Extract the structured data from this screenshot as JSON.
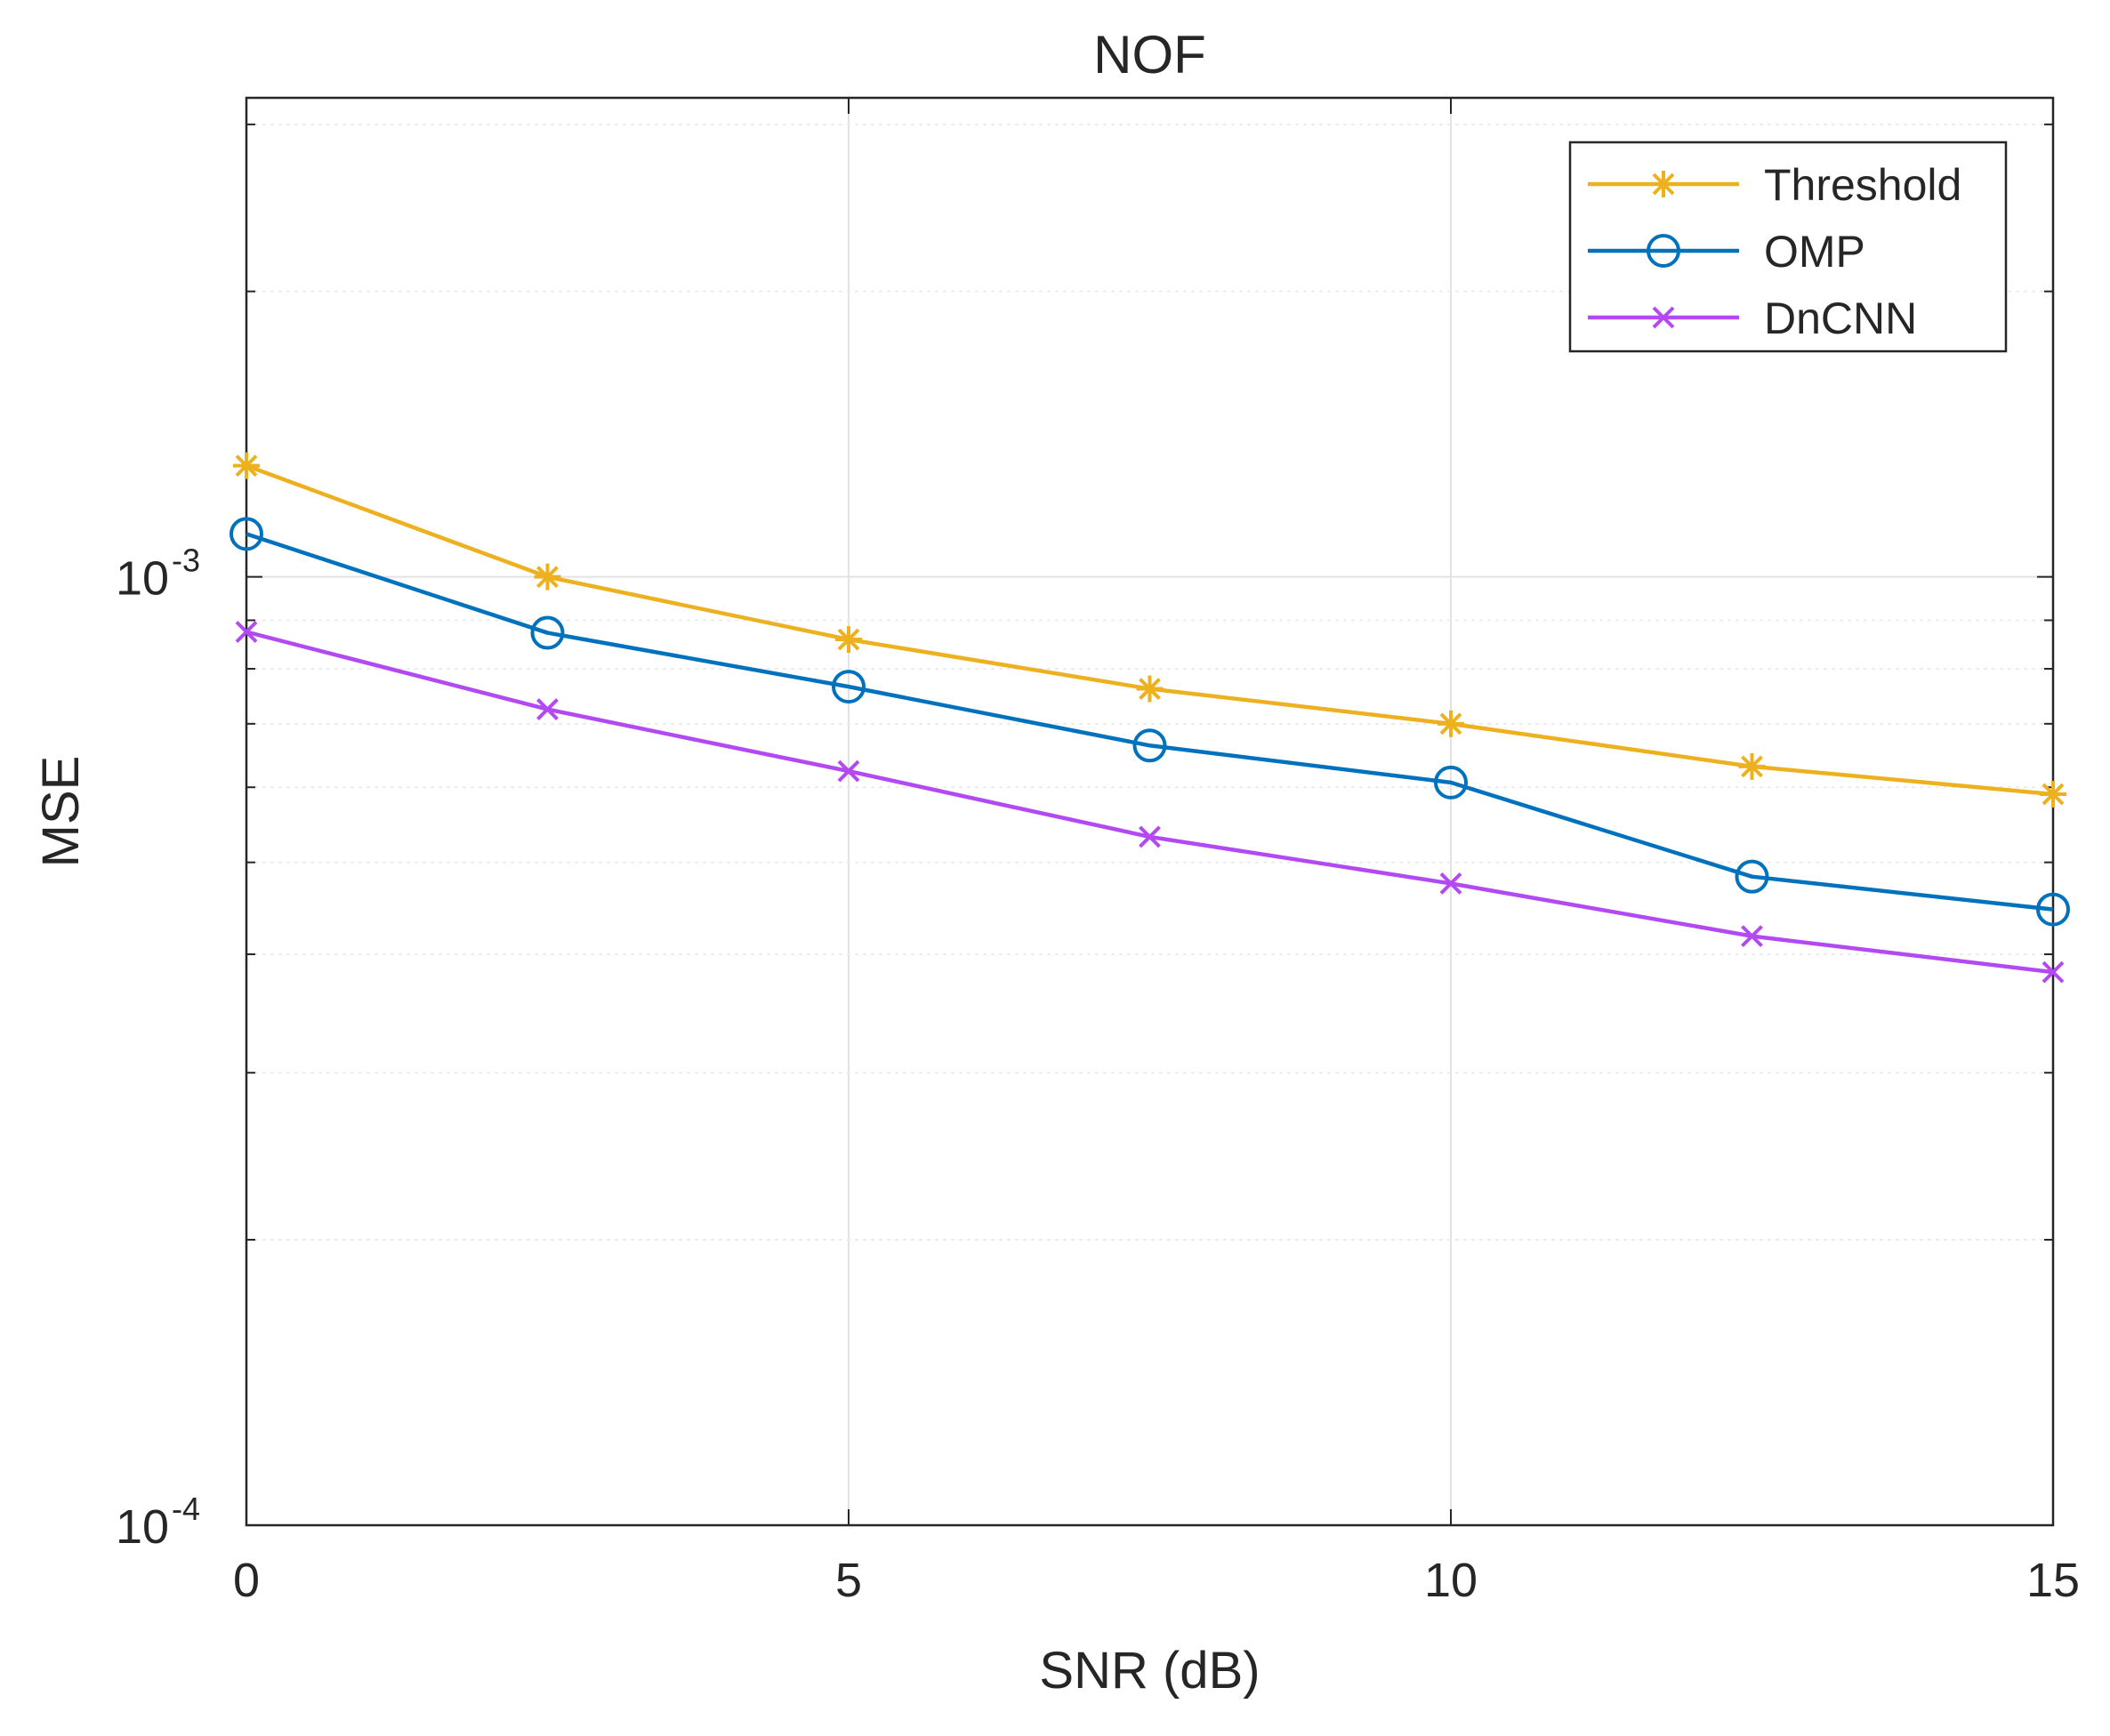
{
  "chart_data": {
    "type": "line",
    "title": "NOF",
    "xlabel": "SNR (dB)",
    "ylabel": "MSE",
    "xlim": [
      0,
      15
    ],
    "ylim": [
      0.0001,
      0.0032
    ],
    "yscale": "log",
    "grid": true,
    "legend_position": "top-right",
    "x": [
      0,
      2.5,
      5,
      7.5,
      10,
      12.5,
      15
    ],
    "x_ticks": [
      0,
      5,
      10,
      15
    ],
    "x_tick_labels": [
      "0",
      "5",
      "10",
      "15"
    ],
    "y_ticks": [
      0.0001,
      0.001
    ],
    "y_tick_labels": [
      {
        "base": "10",
        "exp": "-4"
      },
      {
        "base": "10",
        "exp": "-3"
      }
    ],
    "series": [
      {
        "name": "Threshold",
        "color": "#EDB120",
        "marker": "asterisk",
        "values": [
          0.00131,
          0.001,
          0.000859,
          0.000762,
          0.0007,
          0.000631,
          0.00059
        ]
      },
      {
        "name": "OMP",
        "color": "#0072BD",
        "marker": "circle",
        "values": [
          0.00111,
          0.000873,
          0.000766,
          0.000664,
          0.000607,
          0.000483,
          0.000446
        ]
      },
      {
        "name": "DnCNN",
        "color": "#B249F2",
        "marker": "x",
        "values": [
          0.000875,
          0.000725,
          0.000624,
          0.000532,
          0.000475,
          0.000418,
          0.000383
        ]
      }
    ]
  }
}
